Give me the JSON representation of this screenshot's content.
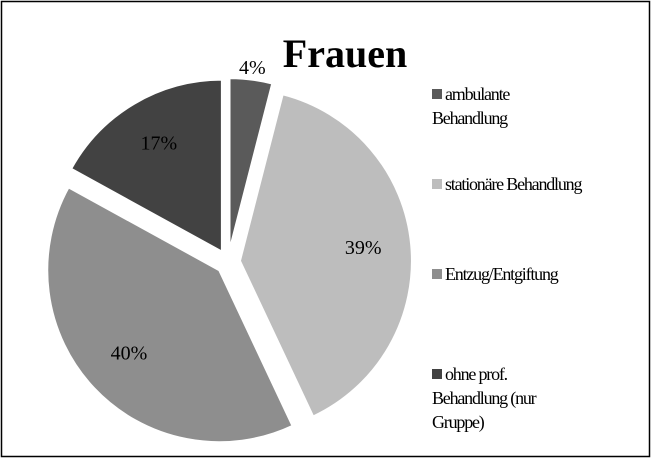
{
  "chart_data": {
    "type": "pie",
    "title": "Frauen",
    "categories": [
      "ambulante Behandlung",
      "stationäre Behandlung",
      "Entzug/Entgiftung",
      "ohne prof. Behandlung (nur Gruppe)"
    ],
    "values": [
      4,
      39,
      40,
      17
    ],
    "value_labels": [
      "4%",
      "39%",
      "40%",
      "17%"
    ],
    "colors": [
      "#5a5a5a",
      "#bdbdbd",
      "#8e8e8e",
      "#424242"
    ],
    "legend": "right"
  }
}
